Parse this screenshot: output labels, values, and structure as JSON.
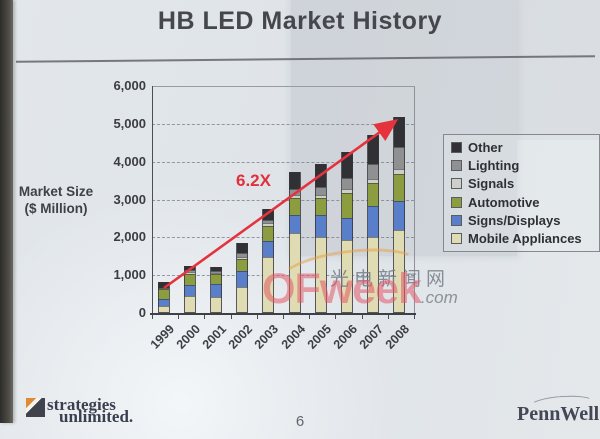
{
  "title": "HB LED Market History",
  "page_number": "6",
  "annotation": {
    "label": "6.2X",
    "color": "#e0303a"
  },
  "watermark": {
    "cn_text": "光电新闻网",
    "brand": "OFweek",
    "suffix": ".com"
  },
  "footer": {
    "left_logo_line1": "strategies",
    "left_logo_line2": "unlimited.",
    "right_logo": "PennWell"
  },
  "chart_data": {
    "type": "bar",
    "stacked": true,
    "ylabel_line1": "Market Size",
    "ylabel_line2": "($ Million)",
    "ylim": [
      0,
      6000
    ],
    "ytick_interval": 1000,
    "grid": "dashed-horizontal",
    "legend_position": "right",
    "categories": [
      "1999",
      "2000",
      "2001",
      "2002",
      "2003",
      "2004",
      "2005",
      "2006",
      "2007",
      "2008"
    ],
    "series": [
      {
        "name": "Mobile Appliances",
        "color": "#dfdbb2",
        "values": [
          180,
          450,
          430,
          700,
          1480,
          2120,
          2000,
          1920,
          2000,
          2200
        ]
      },
      {
        "name": "Signs/Displays",
        "color": "#5a7fca",
        "values": [
          180,
          300,
          330,
          400,
          420,
          480,
          580,
          600,
          830,
          760
        ]
      },
      {
        "name": "Automotive",
        "color": "#8b9d3f",
        "values": [
          270,
          290,
          270,
          320,
          400,
          430,
          450,
          650,
          600,
          710
        ]
      },
      {
        "name": "Signals",
        "color": "#cfcfca",
        "values": [
          20,
          40,
          35,
          70,
          90,
          90,
          90,
          100,
          125,
          130
        ]
      },
      {
        "name": "Lighting",
        "color": "#8f9092",
        "values": [
          20,
          45,
          35,
          100,
          80,
          150,
          210,
          310,
          380,
          580
        ]
      },
      {
        "name": "Other",
        "color": "#303035",
        "values": [
          160,
          125,
          115,
          260,
          270,
          450,
          610,
          680,
          760,
          810
        ]
      }
    ],
    "totals": [
      830,
      1250,
      1215,
      1850,
      2740,
      3720,
      3940,
      4260,
      4695,
      5190
    ],
    "growth_annotation": "6.2X growth from 1999 to 2008"
  }
}
